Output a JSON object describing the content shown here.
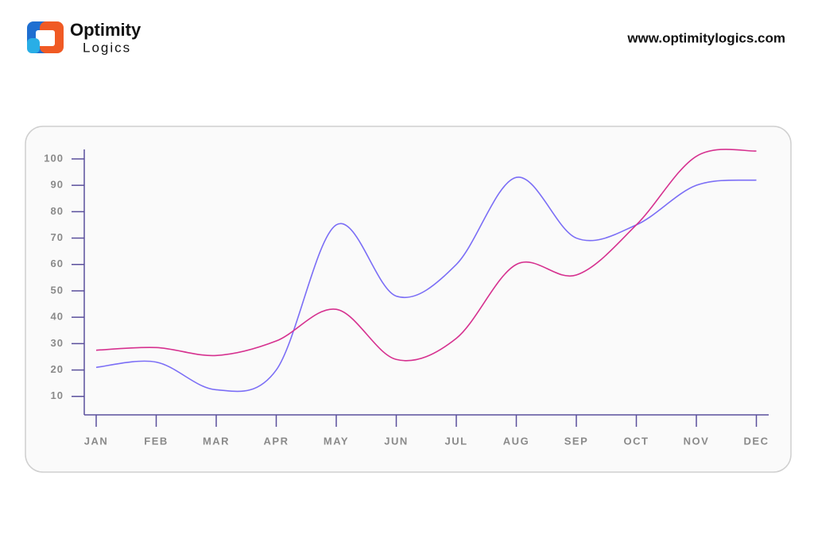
{
  "header": {
    "brand": "Optimity",
    "brand_sub": "Logics",
    "url": "www.optimitylogics.com"
  },
  "chart_data": {
    "type": "line",
    "categories": [
      "JAN",
      "FEB",
      "MAR",
      "APR",
      "MAY",
      "JUN",
      "JUL",
      "AUG",
      "SEP",
      "OCT",
      "NOV",
      "DEC"
    ],
    "series": [
      {
        "color": "#7b6ef6",
        "values": [
          21,
          23,
          12.5,
          20,
          75,
          48,
          60,
          93,
          70,
          75,
          90,
          92
        ]
      },
      {
        "color": "#d6318f",
        "values": [
          27.5,
          28.5,
          25.5,
          31,
          43,
          24,
          32,
          60,
          56,
          75,
          101,
          103
        ]
      }
    ],
    "ylim": [
      3,
      103
    ],
    "yticks": [
      10,
      20,
      30,
      40,
      50,
      60,
      70,
      80,
      90,
      100
    ],
    "grid": false
  }
}
